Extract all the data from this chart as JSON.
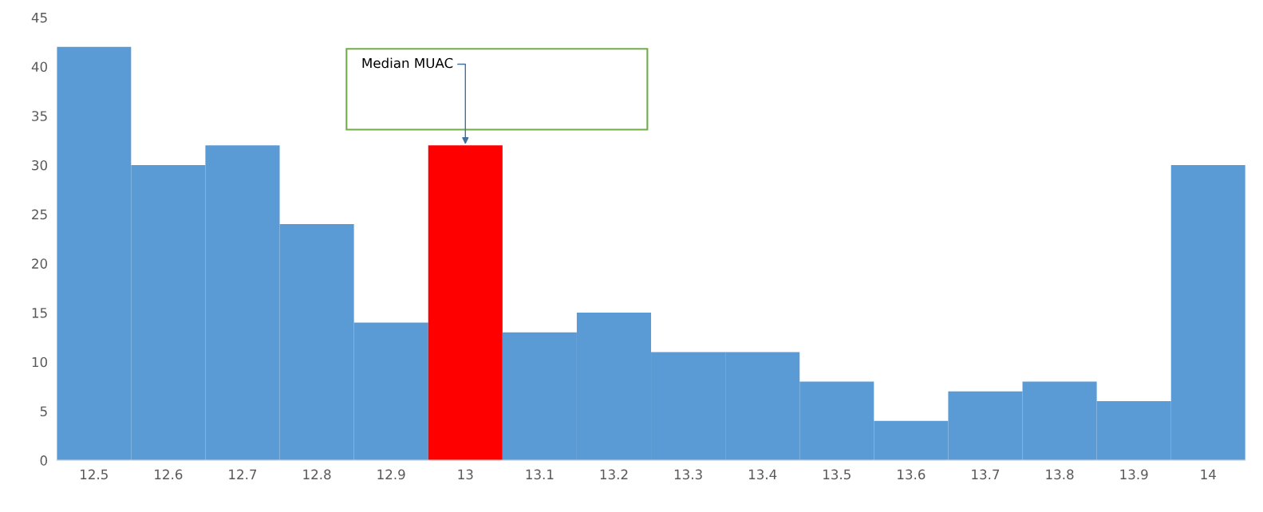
{
  "chart_data": {
    "type": "bar",
    "categories": [
      "12.5",
      "12.6",
      "12.7",
      "12.8",
      "12.9",
      "13",
      "13.1",
      "13.2",
      "13.3",
      "13.4",
      "13.5",
      "13.6",
      "13.7",
      "13.8",
      "13.9",
      "14"
    ],
    "values": [
      42,
      30,
      32,
      24,
      14,
      32,
      13,
      15,
      11,
      11,
      8,
      4,
      7,
      8,
      6,
      30
    ],
    "colors": [
      "#5b9bd5",
      "#5b9bd5",
      "#5b9bd5",
      "#5b9bd5",
      "#5b9bd5",
      "#ff0000",
      "#5b9bd5",
      "#5b9bd5",
      "#5b9bd5",
      "#5b9bd5",
      "#5b9bd5",
      "#5b9bd5",
      "#5b9bd5",
      "#5b9bd5",
      "#5b9bd5",
      "#5b9bd5"
    ],
    "ylim": [
      0,
      45
    ],
    "yticks": [
      0,
      5,
      10,
      15,
      20,
      25,
      30,
      35,
      40,
      45
    ],
    "grid": false,
    "legend": false,
    "annotations": [
      {
        "text": "Median MUAC",
        "x": "13",
        "y": 32
      }
    ]
  }
}
